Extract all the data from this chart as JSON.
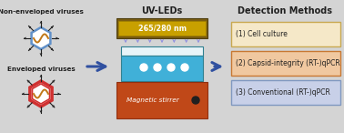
{
  "bg_color": "#d4d4d4",
  "title_uvled": "UV-LEDs",
  "title_detection": "Detection Methods",
  "label_nonenveloped": "Non-enveloped viruses",
  "label_enveloped": "Enveloped viruses",
  "uvled_label": "265/280 nm",
  "stirrer_label": "Magnetic stirrer",
  "detection_boxes": [
    {
      "text": "(1) Cell culture",
      "color": "#f5e8c8",
      "edgecolor": "#c8a850"
    },
    {
      "text": "(2) Capsid-integrity (RT-)qPCR",
      "color": "#f0c8a0",
      "edgecolor": "#c87832"
    },
    {
      "text": "(3) Conventional (RT-)qPCR",
      "color": "#c8d0e8",
      "edgecolor": "#8098c0"
    }
  ],
  "arrow_color": "#3050a0",
  "hex_color_ne": "#6090c8",
  "hex_color_en_outer": "#d03030",
  "hex_color_en_inner": "#d03030",
  "wave_color": "#c07818",
  "uvled_board_color": "#7a5c10",
  "uvled_strip_color": "#c8a000",
  "beaker_body_color": "#40b0d8",
  "beaker_top_color": "#e8f4f8",
  "stirrer_box_color": "#c04818",
  "spike_color": "#202020"
}
